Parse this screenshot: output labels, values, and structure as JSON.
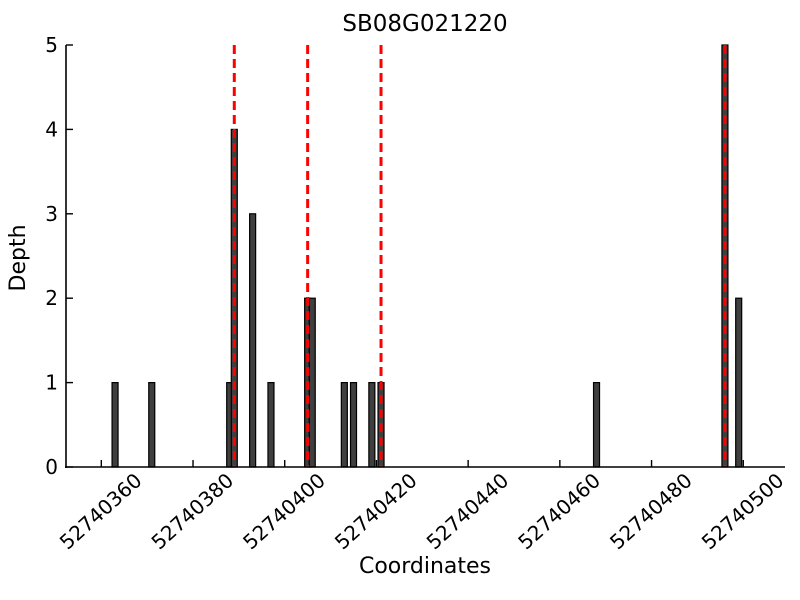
{
  "chart_data": {
    "type": "bar",
    "title": "SB08G021220",
    "xlabel": "Coordinates",
    "ylabel": "Depth",
    "xlim": [
      52740352.3,
      52740509.1
    ],
    "ylim": [
      0,
      5
    ],
    "x_ticks": [
      52740360,
      52740380,
      52740400,
      52740420,
      52740440,
      52740460,
      52740480,
      52740500
    ],
    "x_tick_labels": [
      "52740360",
      "52740380",
      "52740400",
      "52740420",
      "52740440",
      "52740460",
      "52740480",
      "52740500"
    ],
    "y_ticks": [
      0,
      1,
      2,
      3,
      4,
      5
    ],
    "y_tick_labels": [
      "0",
      "1",
      "2",
      "3",
      "4",
      "5"
    ],
    "bars": [
      {
        "x": 52740363,
        "depth": 1
      },
      {
        "x": 52740371,
        "depth": 1
      },
      {
        "x": 52740388,
        "depth": 1
      },
      {
        "x": 52740389,
        "depth": 4
      },
      {
        "x": 52740393,
        "depth": 3
      },
      {
        "x": 52740397,
        "depth": 1
      },
      {
        "x": 52740405,
        "depth": 2
      },
      {
        "x": 52740406,
        "depth": 2
      },
      {
        "x": 52740413,
        "depth": 1
      },
      {
        "x": 52740415,
        "depth": 1
      },
      {
        "x": 52740419,
        "depth": 1
      },
      {
        "x": 52740421,
        "depth": 1
      },
      {
        "x": 52740468,
        "depth": 1
      },
      {
        "x": 52740496,
        "depth": 5
      },
      {
        "x": 52740499,
        "depth": 2
      }
    ],
    "marker_lines": [
      52740389,
      52740405,
      52740421,
      52740496
    ],
    "legend": null,
    "grid": false,
    "colors": {
      "bar_fill": "#3f3f3f",
      "bar_edge": "#000000",
      "marker_line": "#ff0000",
      "axis": "#000000",
      "background": "#ffffff"
    },
    "style": {
      "tick_direction": "in",
      "x_tick_label_rotation_deg": -42,
      "marker_dash_pattern": "9 5"
    }
  }
}
